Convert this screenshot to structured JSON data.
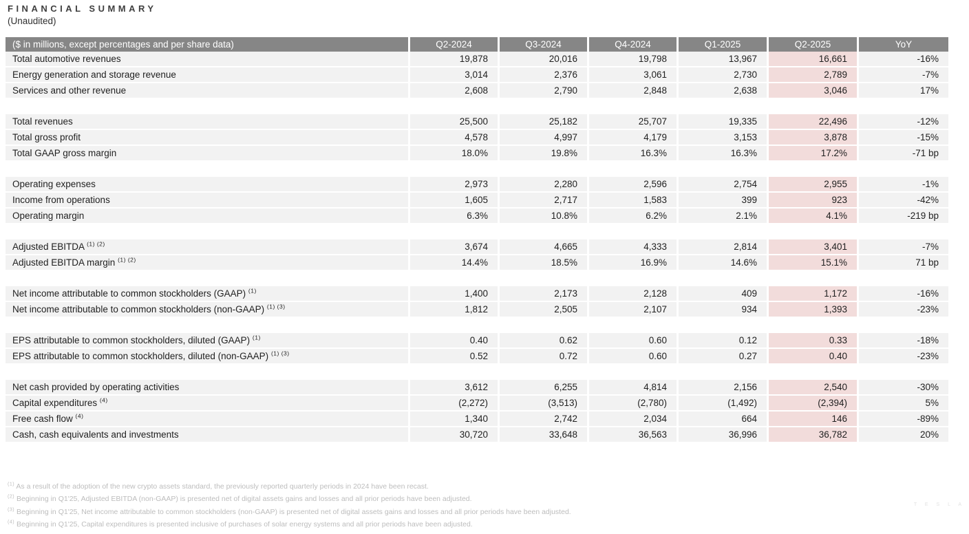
{
  "page": {
    "title": "FINANCIAL SUMMARY",
    "subtitle": "(Unaudited)",
    "watermark": "T E S L A"
  },
  "colors": {
    "header_bg": "#868686",
    "row_bg": "#f2f2f2",
    "highlight_bg": "#f2dcdb",
    "text_color": "#1f1f1f",
    "footnote_color": "#bdbdbd",
    "title_color": "#3f3f3f"
  },
  "table": {
    "header": [
      "($ in millions, except percentages and per share data)",
      "Q2-2024",
      "Q3-2024",
      "Q4-2024",
      "Q1-2025",
      "Q2-2025",
      "YoY"
    ],
    "highlight_column_label": "Q2-2025",
    "highlight_value_index": 4,
    "rows": [
      {
        "label": "Total automotive revenues",
        "sup": "",
        "values": [
          "19,878",
          "20,016",
          "19,798",
          "13,967",
          "16,661",
          "-16%"
        ]
      },
      {
        "label": "Energy generation and storage revenue",
        "sup": "",
        "values": [
          "3,014",
          "2,376",
          "3,061",
          "2,730",
          "2,789",
          "-7%"
        ]
      },
      {
        "label": "Services and other revenue",
        "sup": "",
        "values": [
          "2,608",
          "2,790",
          "2,848",
          "2,638",
          "3,046",
          "17%"
        ]
      },
      {
        "gap": true
      },
      {
        "label": "Total revenues",
        "sup": "",
        "values": [
          "25,500",
          "25,182",
          "25,707",
          "19,335",
          "22,496",
          "-12%"
        ]
      },
      {
        "label": "Total gross profit",
        "sup": "",
        "values": [
          "4,578",
          "4,997",
          "4,179",
          "3,153",
          "3,878",
          "-15%"
        ]
      },
      {
        "label": "Total GAAP gross margin",
        "sup": "",
        "values": [
          "18.0%",
          "19.8%",
          "16.3%",
          "16.3%",
          "17.2%",
          "-71 bp"
        ]
      },
      {
        "gap": true
      },
      {
        "label": "Operating expenses",
        "sup": "",
        "values": [
          "2,973",
          "2,280",
          "2,596",
          "2,754",
          "2,955",
          "-1%"
        ]
      },
      {
        "label": "Income from operations",
        "sup": "",
        "values": [
          "1,605",
          "2,717",
          "1,583",
          "399",
          "923",
          "-42%"
        ]
      },
      {
        "label": "Operating margin",
        "sup": "",
        "values": [
          "6.3%",
          "10.8%",
          "6.2%",
          "2.1%",
          "4.1%",
          "-219 bp"
        ]
      },
      {
        "gap": true
      },
      {
        "label": "Adjusted EBITDA",
        "sup": "(1) (2)",
        "values": [
          "3,674",
          "4,665",
          "4,333",
          "2,814",
          "3,401",
          "-7%"
        ]
      },
      {
        "label": "Adjusted EBITDA margin",
        "sup": "(1) (2)",
        "values": [
          "14.4%",
          "18.5%",
          "16.9%",
          "14.6%",
          "15.1%",
          "71 bp"
        ]
      },
      {
        "gap": true
      },
      {
        "label": "Net income attributable to common stockholders (GAAP)",
        "sup": "(1)",
        "values": [
          "1,400",
          "2,173",
          "2,128",
          "409",
          "1,172",
          "-16%"
        ]
      },
      {
        "label": "Net income attributable to common stockholders (non-GAAP)",
        "sup": "(1) (3)",
        "values": [
          "1,812",
          "2,505",
          "2,107",
          "934",
          "1,393",
          "-23%"
        ]
      },
      {
        "gap": true
      },
      {
        "label": "EPS attributable to common stockholders, diluted (GAAP)",
        "sup": "(1)",
        "values": [
          "0.40",
          "0.62",
          "0.60",
          "0.12",
          "0.33",
          "-18%"
        ]
      },
      {
        "label": "EPS attributable to common stockholders, diluted (non-GAAP)",
        "sup": "(1) (3)",
        "values": [
          "0.52",
          "0.72",
          "0.60",
          "0.27",
          "0.40",
          "-23%"
        ]
      },
      {
        "gap": true
      },
      {
        "label": "Net cash provided by operating activities",
        "sup": "",
        "values": [
          "3,612",
          "6,255",
          "4,814",
          "2,156",
          "2,540",
          "-30%"
        ]
      },
      {
        "label": "Capital expenditures",
        "sup": "(4)",
        "values": [
          "(2,272)",
          "(3,513)",
          "(2,780)",
          "(1,492)",
          "(2,394)",
          "5%"
        ]
      },
      {
        "label": "Free cash flow",
        "sup": "(4)",
        "values": [
          "1,340",
          "2,742",
          "2,034",
          "664",
          "146",
          "-89%"
        ]
      },
      {
        "label": "Cash, cash equivalents and investments",
        "sup": "",
        "values": [
          "30,720",
          "33,648",
          "36,563",
          "36,996",
          "36,782",
          "20%"
        ]
      }
    ],
    "footnotes": [
      {
        "ref": "(1)",
        "text": "As a result of the adoption of the new crypto assets standard, the previously reported quarterly periods in 2024 have been recast."
      },
      {
        "ref": "(2)",
        "text": "Beginning in Q1'25, Adjusted EBITDA (non-GAAP) is presented net of digital assets gains and losses and all prior periods have been adjusted."
      },
      {
        "ref": "(3)",
        "text": "Beginning in Q1'25, Net income attributable to common stockholders (non-GAAP) is presented net of digital assets gains and losses and all prior periods have been adjusted."
      },
      {
        "ref": "(4)",
        "text": "Beginning in Q1'25, Capital expenditures is presented inclusive of purchases of solar energy systems and all prior periods have been adjusted."
      }
    ]
  }
}
